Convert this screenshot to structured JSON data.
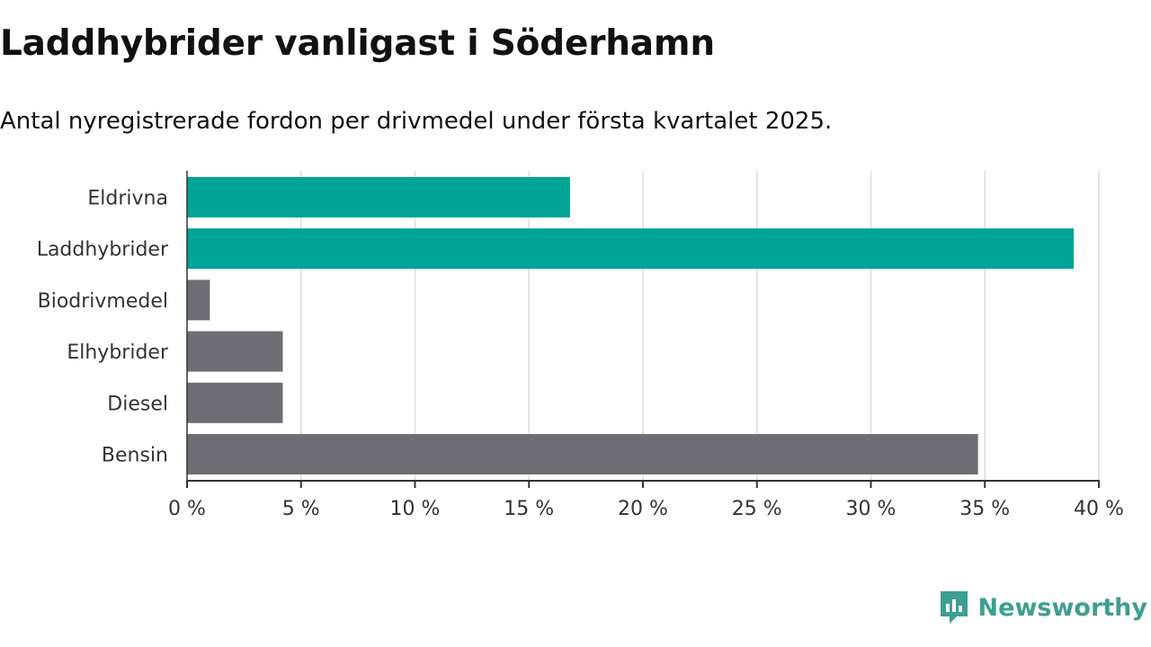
{
  "header": {
    "title": "Laddhybrider vanligast i Söderhamn",
    "subtitle": "Antal nyregistrerade fordon per drivmedel under första kvartalet 2025."
  },
  "branding": {
    "logo_icon": "newsworthy-chart-icon",
    "logo_text": "Newsworthy",
    "logo_color": "#3d9f91"
  },
  "colors": {
    "highlight": "#00a497",
    "default": "#6e6d74",
    "grid": "#dddddd",
    "axis": "#333333"
  },
  "chart_data": {
    "type": "bar",
    "orientation": "horizontal",
    "categories": [
      "Eldrivna",
      "Laddhybrider",
      "Biodrivmedel",
      "Elhybrider",
      "Diesel",
      "Bensin"
    ],
    "values": [
      16.8,
      38.9,
      1.0,
      4.2,
      4.2,
      34.7
    ],
    "highlighted": [
      true,
      true,
      false,
      false,
      false,
      false
    ],
    "xlim": [
      0,
      40
    ],
    "xticks": [
      0,
      5,
      10,
      15,
      20,
      25,
      30,
      35,
      40
    ],
    "xtick_labels": [
      "0 %",
      "5 %",
      "10 %",
      "15 %",
      "20 %",
      "25 %",
      "30 %",
      "35 %",
      "40 %"
    ],
    "grid": true
  }
}
